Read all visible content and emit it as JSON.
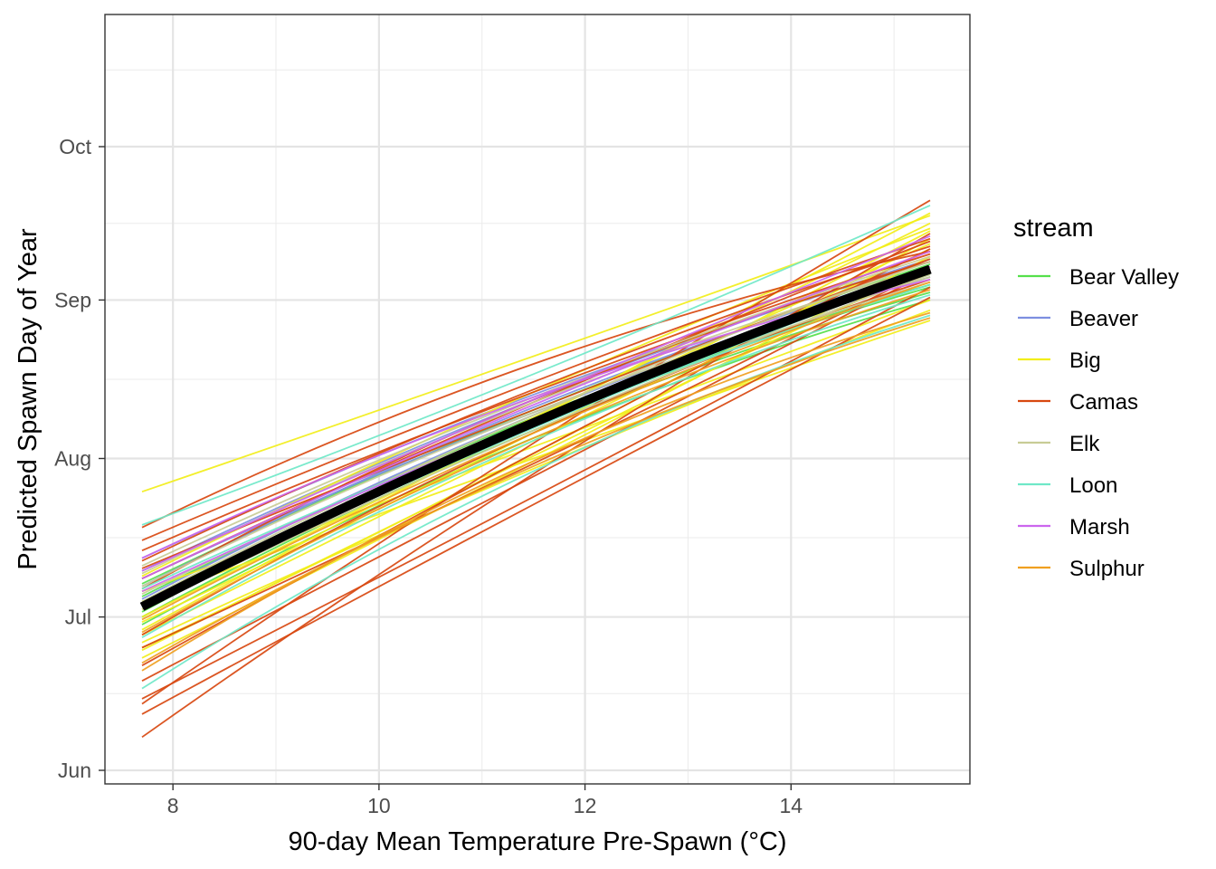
{
  "chart_data": {
    "type": "line",
    "xlabel": "90-day Mean Temperature Pre-Spawn (°C)",
    "ylabel": "Predicted Spawn Day of Year",
    "xlim": [
      7.35,
      15.75
    ],
    "ylim": [
      154,
      243
    ],
    "x_ticks": [
      8,
      10,
      12,
      14
    ],
    "x_tick_labels": [
      "8",
      "10",
      "12",
      "14"
    ],
    "y_ticks": [
      152,
      182,
      213,
      244,
      274
    ],
    "y_tick_labels": [
      "Jun",
      "Jul",
      "Aug",
      "Sep",
      "Oct"
    ],
    "grid": true,
    "legend": {
      "title": "stream",
      "placement": "right",
      "entries": [
        {
          "label": "Bear Valley",
          "color": "#55e04b"
        },
        {
          "label": "Beaver",
          "color": "#7d8fe0"
        },
        {
          "label": "Big",
          "color": "#f2ee1a"
        },
        {
          "label": "Camas",
          "color": "#d84810"
        },
        {
          "label": "Elk",
          "color": "#c8cc96"
        },
        {
          "label": "Loon",
          "color": "#6fe8c8"
        },
        {
          "label": "Marsh",
          "color": "#cc66ee"
        },
        {
          "label": "Sulphur",
          "color": "#f0a020"
        }
      ]
    },
    "x": [
      7.7,
      11.5,
      15.35
    ],
    "series": [
      {
        "stream": "Bear Valley",
        "values": [
          184.5,
          220.0,
          247.0
        ]
      },
      {
        "stream": "Bear Valley",
        "values": [
          182.0,
          218.5,
          245.5
        ]
      },
      {
        "stream": "Bear Valley",
        "values": [
          186.0,
          221.0,
          249.0
        ]
      },
      {
        "stream": "Bear Valley",
        "values": [
          180.5,
          217.0,
          244.0
        ]
      },
      {
        "stream": "Bear Valley",
        "values": [
          188.5,
          222.5,
          251.0
        ]
      },
      {
        "stream": "Bear Valley",
        "values": [
          183.0,
          219.5,
          246.5
        ]
      },
      {
        "stream": "Beaver",
        "values": [
          191.0,
          224.5,
          252.0
        ]
      },
      {
        "stream": "Beaver",
        "values": [
          188.0,
          223.0,
          250.0
        ]
      },
      {
        "stream": "Beaver",
        "values": [
          185.5,
          221.5,
          249.5
        ]
      },
      {
        "stream": "Beaver",
        "values": [
          189.5,
          222.0,
          248.5
        ]
      },
      {
        "stream": "Beaver",
        "values": [
          193.5,
          225.5,
          251.5
        ]
      },
      {
        "stream": "Big",
        "values": [
          206.5,
          233.0,
          260.5
        ]
      },
      {
        "stream": "Big",
        "values": [
          176.0,
          214.0,
          256.0
        ]
      },
      {
        "stream": "Big",
        "values": [
          178.5,
          216.5,
          254.0
        ]
      },
      {
        "stream": "Big",
        "values": [
          181.0,
          218.0,
          257.5
        ]
      },
      {
        "stream": "Big",
        "values": [
          174.0,
          212.5,
          252.5
        ]
      },
      {
        "stream": "Big",
        "values": [
          183.5,
          221.0,
          259.0
        ]
      },
      {
        "stream": "Big",
        "values": [
          185.0,
          213.0,
          240.0
        ]
      },
      {
        "stream": "Big",
        "values": [
          187.0,
          215.5,
          244.0
        ]
      },
      {
        "stream": "Big",
        "values": [
          177.0,
          211.0,
          242.0
        ]
      },
      {
        "stream": "Big",
        "values": [
          179.5,
          220.5,
          261.0
        ]
      },
      {
        "stream": "Big",
        "values": [
          190.0,
          226.0,
          258.0
        ]
      },
      {
        "stream": "Big",
        "values": [
          182.0,
          219.5,
          255.0
        ]
      },
      {
        "stream": "Big",
        "values": [
          175.5,
          213.5,
          250.5
        ]
      },
      {
        "stream": "Camas",
        "values": [
          199.5,
          231.5,
          253.5
        ]
      },
      {
        "stream": "Camas",
        "values": [
          197.0,
          228.0,
          256.0
        ]
      },
      {
        "stream": "Camas",
        "values": [
          195.0,
          226.0,
          253.0
        ]
      },
      {
        "stream": "Camas",
        "values": [
          193.0,
          226.5,
          254.5
        ]
      },
      {
        "stream": "Camas",
        "values": [
          191.5,
          222.5,
          252.0
        ]
      },
      {
        "stream": "Camas",
        "values": [
          189.5,
          224.0,
          255.5
        ]
      },
      {
        "stream": "Camas",
        "values": [
          187.5,
          224.5,
          251.5
        ]
      },
      {
        "stream": "Camas",
        "values": [
          176.0,
          212.0,
          250.0
        ]
      },
      {
        "stream": "Camas",
        "values": [
          172.5,
          214.0,
          254.0
        ]
      },
      {
        "stream": "Camas",
        "values": [
          169.5,
          209.5,
          249.5
        ]
      },
      {
        "stream": "Camas",
        "values": [
          165.0,
          216.0,
          263.5
        ]
      },
      {
        "stream": "Camas",
        "values": [
          158.5,
          210.0,
          257.0
        ]
      },
      {
        "stream": "Camas",
        "values": [
          163.0,
          204.0,
          244.5
        ]
      },
      {
        "stream": "Camas",
        "values": [
          166.0,
          205.5,
          246.5
        ]
      },
      {
        "stream": "Camas",
        "values": [
          178.5,
          218.0,
          248.0
        ]
      },
      {
        "stream": "Elk",
        "values": [
          190.5,
          224.0,
          250.5
        ]
      },
      {
        "stream": "Elk",
        "values": [
          188.0,
          222.0,
          248.5
        ]
      },
      {
        "stream": "Elk",
        "values": [
          185.0,
          221.5,
          251.5
        ]
      },
      {
        "stream": "Elk",
        "values": [
          186.5,
          220.5,
          247.5
        ]
      },
      {
        "stream": "Elk",
        "values": [
          192.0,
          225.0,
          252.5
        ]
      },
      {
        "stream": "Elk",
        "values": [
          183.5,
          218.5,
          249.0
        ]
      },
      {
        "stream": "Loon",
        "values": [
          200.0,
          229.5,
          262.5
        ]
      },
      {
        "stream": "Loon",
        "values": [
          168.0,
          210.5,
          241.0
        ]
      },
      {
        "stream": "Loon",
        "values": [
          178.0,
          216.5,
          245.0
        ]
      },
      {
        "stream": "Loon",
        "values": [
          184.0,
          219.0,
          249.5
        ]
      },
      {
        "stream": "Loon",
        "values": [
          187.5,
          220.0,
          247.0
        ]
      },
      {
        "stream": "Marsh",
        "values": [
          193.5,
          225.0,
          248.0
        ]
      },
      {
        "stream": "Marsh",
        "values": [
          191.0,
          224.5,
          256.5
        ]
      },
      {
        "stream": "Marsh",
        "values": [
          189.5,
          223.5,
          253.5
        ]
      },
      {
        "stream": "Marsh",
        "values": [
          187.0,
          220.5,
          250.5
        ]
      },
      {
        "stream": "Sulphur",
        "values": [
          173.0,
          211.5,
          240.5
        ]
      },
      {
        "stream": "Sulphur",
        "values": [
          171.5,
          212.5,
          241.5
        ]
      },
      {
        "stream": "Sulphur",
        "values": [
          179.0,
          217.0,
          246.0
        ]
      },
      {
        "stream": "Sulphur",
        "values": [
          181.5,
          218.0,
          247.5
        ]
      },
      {
        "stream": "mean",
        "values": [
          184.0,
          220.0,
          250.0
        ]
      }
    ]
  }
}
